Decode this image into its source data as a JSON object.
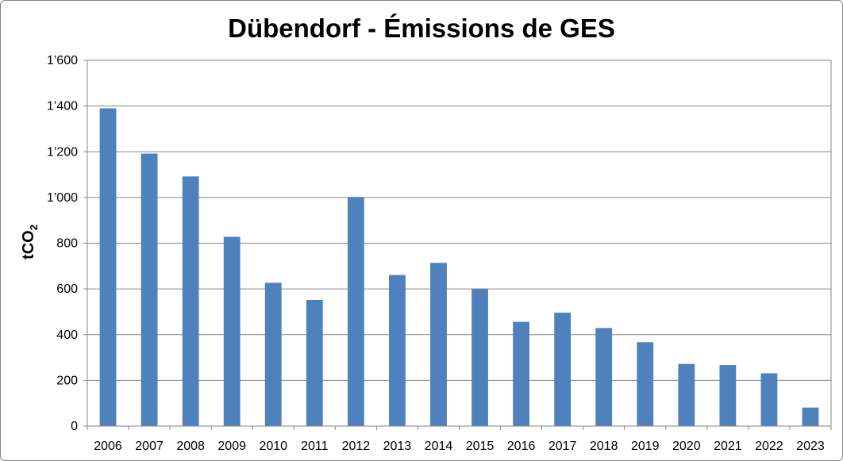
{
  "chart_data": {
    "type": "bar",
    "title": "Dübendorf - Émissions de GES",
    "ylabel": "tCO",
    "ylabel_subscript": "2",
    "xlabel": "",
    "ylim": [
      0,
      1600
    ],
    "yticks": [
      0,
      200,
      400,
      600,
      800,
      1000,
      1200,
      1400,
      1600
    ],
    "ytick_labels": [
      "0",
      "200",
      "400",
      "600",
      "800",
      "1’000",
      "1’200",
      "1’400",
      "1’600"
    ],
    "grid": true,
    "legend": "none",
    "categories": [
      "2006",
      "2007",
      "2008",
      "2009",
      "2010",
      "2011",
      "2012",
      "2013",
      "2014",
      "2015",
      "2016",
      "2017",
      "2018",
      "2019",
      "2020",
      "2021",
      "2022",
      "2023"
    ],
    "values": [
      1390,
      1192,
      1092,
      828,
      627,
      552,
      1002,
      661,
      714,
      601,
      456,
      496,
      429,
      367,
      272,
      267,
      231,
      81
    ],
    "bar_color": "#4F81BD",
    "grid_color": "#868686"
  }
}
